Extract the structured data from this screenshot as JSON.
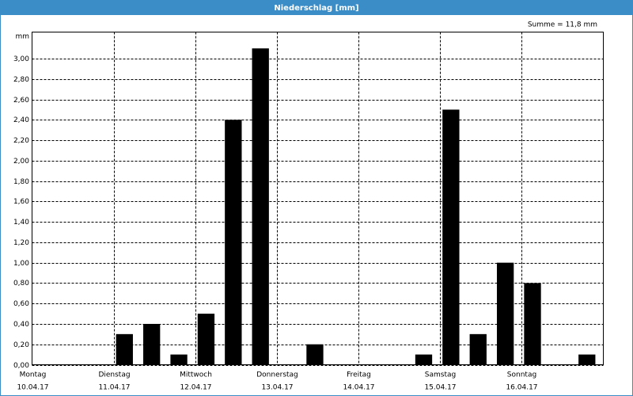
{
  "chart_data": {
    "type": "bar",
    "title": "Niederschlag [mm]",
    "summary": "Summe = 11,8 mm",
    "y_label": "mm",
    "days": [
      {
        "label": "Montag",
        "date": "10.04.17"
      },
      {
        "label": "Dienstag",
        "date": "11.04.17"
      },
      {
        "label": "Mittwoch",
        "date": "12.04.17"
      },
      {
        "label": "Donnerstag",
        "date": "13.04.17"
      },
      {
        "label": "Freitag",
        "date": "14.04.17"
      },
      {
        "label": "Samstag",
        "date": "15.04.17"
      },
      {
        "label": "Sonntag",
        "date": "16.04.17"
      }
    ],
    "values": [
      0,
      0,
      0,
      0.3,
      0.4,
      0.1,
      0.5,
      2.4,
      3.1,
      0,
      0.2,
      0,
      0,
      0,
      0.1,
      2.5,
      0.3,
      1.0,
      0.8,
      0,
      0.1
    ],
    "color": "#000000",
    "ylim": [
      0,
      3.26
    ],
    "yticks": [
      {
        "value": 0,
        "label": "0,00"
      },
      {
        "value": 0.2,
        "label": "0,20"
      },
      {
        "value": 0.4,
        "label": "0,40"
      },
      {
        "value": 0.6,
        "label": "0,60"
      },
      {
        "value": 0.8,
        "label": "0,80"
      },
      {
        "value": 1.0,
        "label": "1,00"
      },
      {
        "value": 1.2,
        "label": "1,20"
      },
      {
        "value": 1.4,
        "label": "1,40"
      },
      {
        "value": 1.6,
        "label": "1,60"
      },
      {
        "value": 1.8,
        "label": "1,80"
      },
      {
        "value": 2.0,
        "label": "2,00"
      },
      {
        "value": 2.2,
        "label": "2,20"
      },
      {
        "value": 2.4,
        "label": "2,40"
      },
      {
        "value": 2.6,
        "label": "2,60"
      },
      {
        "value": 2.8,
        "label": "2,80"
      },
      {
        "value": 3.0,
        "label": "3,00"
      }
    ],
    "grid": true
  }
}
